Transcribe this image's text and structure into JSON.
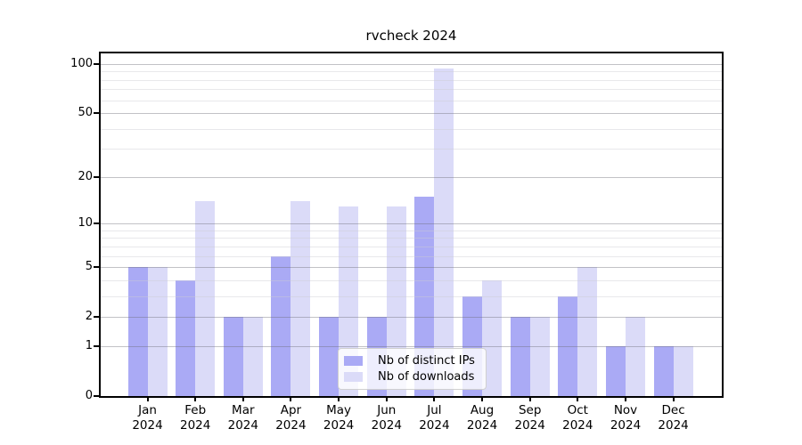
{
  "figure": {
    "title": "rvcheck 2024"
  },
  "chart_data": {
    "type": "bar",
    "title": "rvcheck 2024",
    "categories": [
      {
        "month": "Jan",
        "year": "2024"
      },
      {
        "month": "Feb",
        "year": "2024"
      },
      {
        "month": "Mar",
        "year": "2024"
      },
      {
        "month": "Apr",
        "year": "2024"
      },
      {
        "month": "May",
        "year": "2024"
      },
      {
        "month": "Jun",
        "year": "2024"
      },
      {
        "month": "Jul",
        "year": "2024"
      },
      {
        "month": "Aug",
        "year": "2024"
      },
      {
        "month": "Sep",
        "year": "2024"
      },
      {
        "month": "Oct",
        "year": "2024"
      },
      {
        "month": "Nov",
        "year": "2024"
      },
      {
        "month": "Dec",
        "year": "2024"
      }
    ],
    "series": [
      {
        "name": "Nb of distinct IPs",
        "color": "#aaaaf5",
        "values": [
          5,
          4,
          2,
          6,
          2,
          2,
          15,
          3,
          2,
          3,
          1,
          1
        ]
      },
      {
        "name": "Nb of downloads",
        "color": "#dbdbf8",
        "values": [
          5,
          14,
          2,
          14,
          13,
          13,
          94,
          4,
          2,
          5,
          2,
          1
        ]
      }
    ],
    "xlabel": "",
    "ylabel": "",
    "y_scale": "log1p",
    "y_axis_ticks": [
      0,
      1,
      2,
      5,
      10,
      20,
      50,
      100
    ],
    "y_minor_gridlines": [
      3,
      4,
      6,
      7,
      8,
      9,
      30,
      40,
      60,
      70,
      80,
      90
    ],
    "ylim": [
      0,
      116
    ],
    "grid": true,
    "legend_position": "inside-bottom-center",
    "axis_color": "#000000",
    "major_grid_color": "#c3c3c6",
    "minor_grid_color": "#e9e9ec"
  }
}
